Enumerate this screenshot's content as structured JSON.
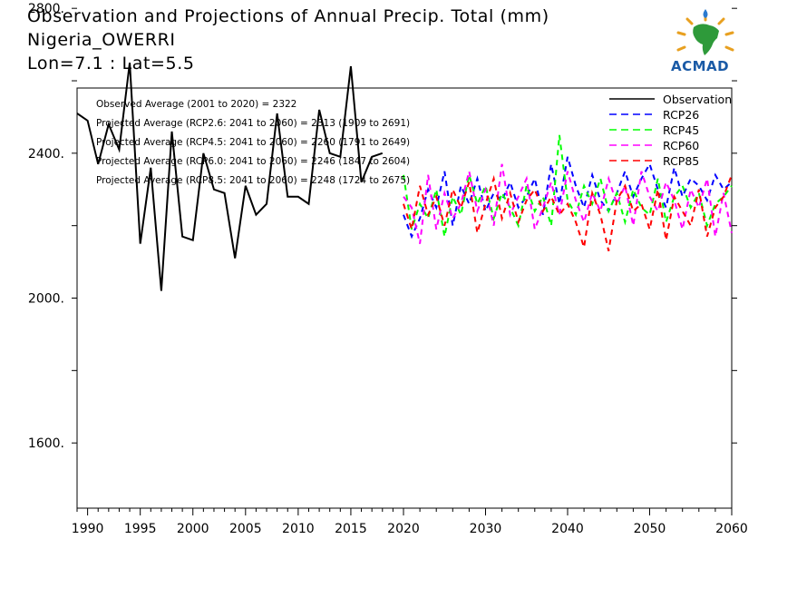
{
  "header": {
    "title": "Observation and Projections of Annual Precip. Total (mm)",
    "location": "Nigeria_OWERRI",
    "coords": "Lon=7.1 : Lat=5.5"
  },
  "logo": {
    "text": "ACMAD"
  },
  "annotations": [
    "Observed Average (2001 to 2020) = 2322",
    "Projected Average (RCP2.6: 2041 to 2060) = 2313 (1909 to 2691)",
    "Projected Average (RCP4.5: 2041 to 2060) = 2260 (1791 to 2649)",
    "Projected Average (RCP6.0: 2041 to 2060) = 2246 (1847 to 2604)",
    "Projected Average (RCP8.5: 2041 to 2060) = 2248 (1724 to 2675)"
  ],
  "chart_data": {
    "type": "line",
    "xlim": [
      1989,
      2060
    ],
    "ylim": [
      1420,
      2580
    ],
    "y_ticks": [
      1600,
      2000,
      2400,
      2800
    ],
    "y_tick_labels": [
      "1600.",
      "2000.",
      "2400.",
      "2800."
    ],
    "x_tick_labels": [
      "1990",
      "1995",
      "2000",
      "2005",
      "2010",
      "2015",
      "2020",
      "2030",
      "2040",
      "2050",
      "2060"
    ],
    "x_tick_years": [
      1990,
      1995,
      2000,
      2005,
      2010,
      2015,
      2020,
      2030,
      2040,
      2050,
      2060
    ],
    "legend_position": "top-right",
    "series": [
      {
        "name": "Observation",
        "color": "#000000",
        "dash": "solid",
        "start": 1989,
        "values": [
          2510,
          2490,
          2370,
          2480,
          2410,
          2650,
          2150,
          2360,
          2020,
          2460,
          2170,
          2160,
          2400,
          2300,
          2290,
          2110,
          2310,
          2230,
          2260,
          2510,
          2280,
          2280,
          2260,
          2520,
          2400,
          2390,
          2640,
          2320,
          2390,
          2400
        ]
      },
      {
        "name": "RCP26",
        "color": "#0000ff",
        "dash": "dashed",
        "start": 2020,
        "values": [
          2230,
          2170,
          2220,
          2300,
          2250,
          2350,
          2200,
          2310,
          2260,
          2330,
          2240,
          2290,
          2270,
          2320,
          2250,
          2280,
          2330,
          2230,
          2370,
          2260,
          2390,
          2310,
          2250,
          2340,
          2270,
          2240,
          2290,
          2350,
          2280,
          2330,
          2370,
          2300,
          2250,
          2360,
          2280,
          2330,
          2310,
          2270,
          2340,
          2300,
          2320
        ]
      },
      {
        "name": "RCP45",
        "color": "#00ff00",
        "dash": "dashed",
        "start": 2020,
        "values": [
          2340,
          2190,
          2260,
          2220,
          2300,
          2170,
          2280,
          2230,
          2340,
          2260,
          2310,
          2220,
          2290,
          2250,
          2200,
          2310,
          2240,
          2280,
          2200,
          2450,
          2270,
          2230,
          2310,
          2260,
          2330,
          2240,
          2290,
          2210,
          2300,
          2250,
          2230,
          2330,
          2210,
          2280,
          2310,
          2250,
          2290,
          2200,
          2260,
          2280,
          2310
        ]
      },
      {
        "name": "RCP60",
        "color": "#ff00ff",
        "dash": "dashed",
        "start": 2020,
        "values": [
          2280,
          2250,
          2150,
          2340,
          2190,
          2290,
          2220,
          2260,
          2350,
          2240,
          2300,
          2200,
          2370,
          2230,
          2280,
          2330,
          2190,
          2250,
          2320,
          2230,
          2350,
          2270,
          2210,
          2290,
          2240,
          2330,
          2260,
          2310,
          2200,
          2350,
          2280,
          2240,
          2320,
          2270,
          2190,
          2300,
          2250,
          2330,
          2170,
          2290,
          2180
        ]
      },
      {
        "name": "RCP85",
        "color": "#ff0000",
        "dash": "dashed",
        "start": 2020,
        "values": [
          2260,
          2190,
          2310,
          2230,
          2280,
          2200,
          2300,
          2250,
          2320,
          2180,
          2260,
          2330,
          2220,
          2290,
          2210,
          2270,
          2300,
          2240,
          2280,
          2230,
          2260,
          2210,
          2140,
          2290,
          2230,
          2130,
          2270,
          2310,
          2240,
          2260,
          2190,
          2300,
          2160,
          2280,
          2240,
          2200,
          2300,
          2170,
          2250,
          2280,
          2340
        ]
      }
    ]
  }
}
